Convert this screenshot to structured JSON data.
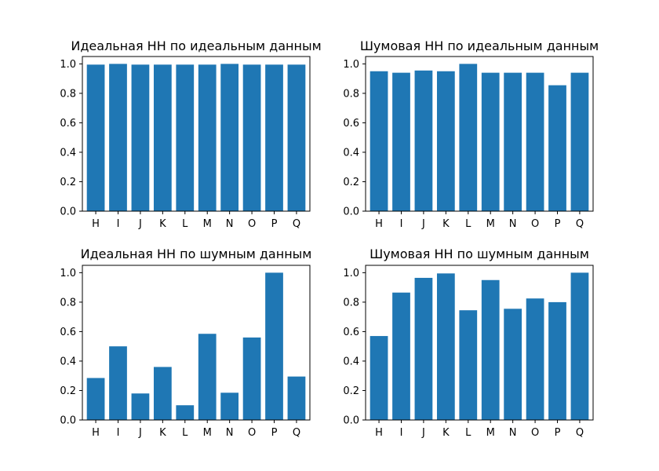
{
  "chart_data": [
    {
      "type": "bar",
      "title": "Идеальная НН по идеальным данным",
      "categories": [
        "H",
        "I",
        "J",
        "K",
        "L",
        "M",
        "N",
        "O",
        "P",
        "Q"
      ],
      "values": [
        0.995,
        1.0,
        0.995,
        0.995,
        0.995,
        0.995,
        1.0,
        0.995,
        0.995,
        0.995
      ],
      "yticks": [
        "0.0",
        "0.2",
        "0.4",
        "0.6",
        "0.8",
        "1.0"
      ],
      "ylim": [
        0,
        1.05
      ],
      "color": "#1f77b4",
      "grid": false
    },
    {
      "type": "bar",
      "title": "Шумовая НН по идеальным данным",
      "categories": [
        "H",
        "I",
        "J",
        "K",
        "L",
        "M",
        "N",
        "O",
        "P",
        "Q"
      ],
      "values": [
        0.95,
        0.94,
        0.955,
        0.95,
        1.0,
        0.94,
        0.94,
        0.94,
        0.855,
        0.94
      ],
      "yticks": [
        "0.0",
        "0.2",
        "0.4",
        "0.6",
        "0.8",
        "1.0"
      ],
      "ylim": [
        0,
        1.05
      ],
      "color": "#1f77b4",
      "grid": false
    },
    {
      "type": "bar",
      "title": "Идеальная НН по шумным данным",
      "categories": [
        "H",
        "I",
        "J",
        "K",
        "L",
        "M",
        "N",
        "O",
        "P",
        "Q"
      ],
      "values": [
        0.285,
        0.5,
        0.18,
        0.36,
        0.1,
        0.585,
        0.185,
        0.56,
        1.0,
        0.295
      ],
      "yticks": [
        "0.0",
        "0.2",
        "0.4",
        "0.6",
        "0.8",
        "1.0"
      ],
      "ylim": [
        0,
        1.05
      ],
      "color": "#1f77b4",
      "grid": false
    },
    {
      "type": "bar",
      "title": "Шумовая НН по шумным данным",
      "categories": [
        "H",
        "I",
        "J",
        "K",
        "L",
        "M",
        "N",
        "O",
        "P",
        "Q"
      ],
      "values": [
        0.57,
        0.865,
        0.965,
        0.995,
        0.745,
        0.95,
        0.755,
        0.825,
        0.8,
        1.0
      ],
      "yticks": [
        "0.0",
        "0.2",
        "0.4",
        "0.6",
        "0.8",
        "1.0"
      ],
      "ylim": [
        0,
        1.05
      ],
      "color": "#1f77b4",
      "grid": false
    }
  ]
}
